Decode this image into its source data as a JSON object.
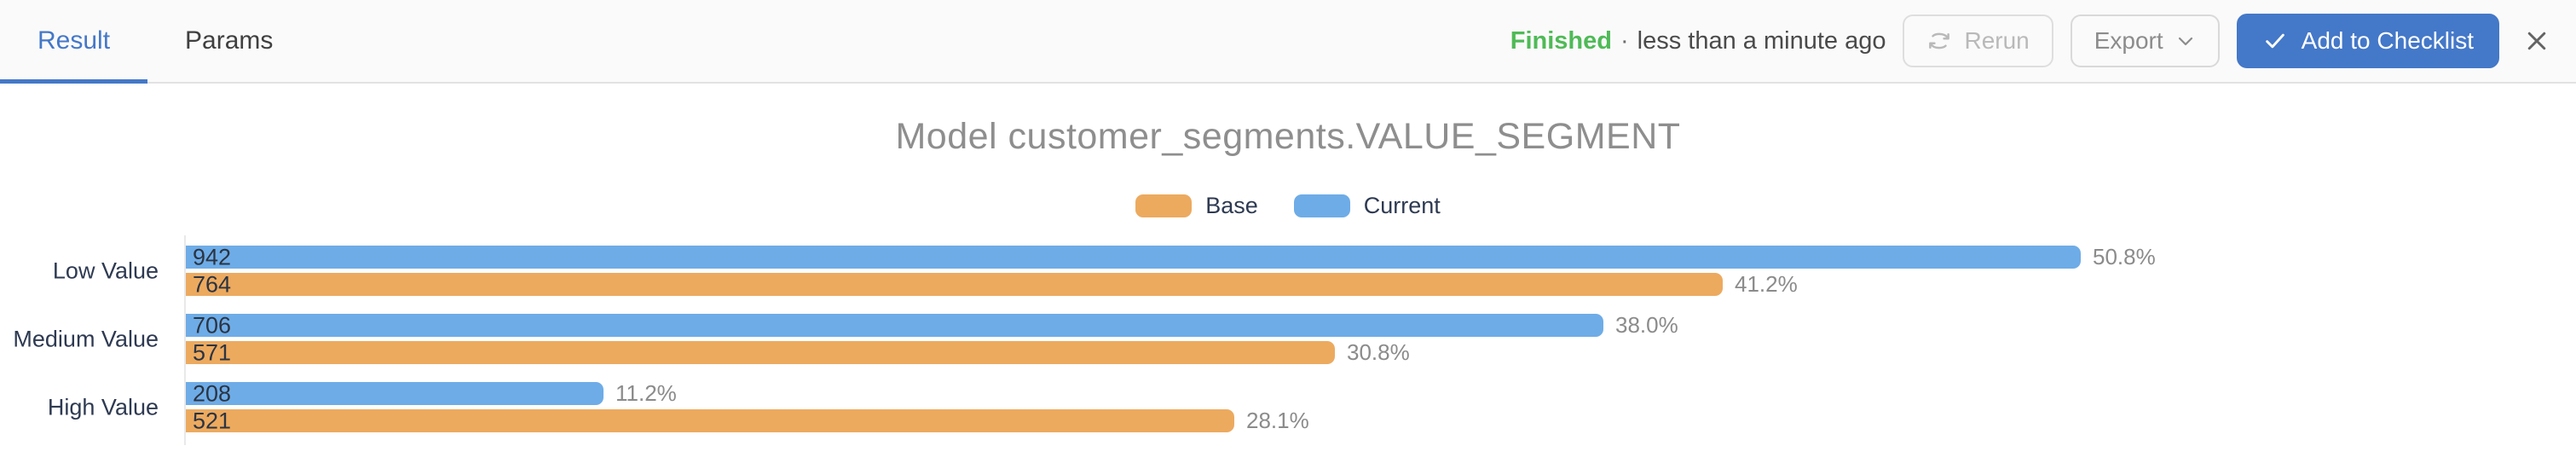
{
  "header": {
    "tabs": [
      {
        "label": "Result",
        "active": true
      },
      {
        "label": "Params",
        "active": false
      }
    ],
    "status": {
      "state": "Finished",
      "separator": "·",
      "time": "less than a minute ago"
    },
    "rerun_label": "Rerun",
    "export_label": "Export",
    "add_to_checklist_label": "Add to Checklist",
    "icons": {
      "rerun": "sync-icon",
      "export_caret": "chevron-down-icon",
      "add_to_checklist": "check-icon",
      "close": "close-icon"
    }
  },
  "colors": {
    "primary_blue": "#4478C8",
    "finished_green": "#4FBA57",
    "bar_current": "#6EACE7",
    "bar_base": "#ECAA5F"
  },
  "chart_data": {
    "type": "bar",
    "orientation": "horizontal",
    "title": "Model customer_segments.VALUE_SEGMENT",
    "categories": [
      "Low Value",
      "Medium Value",
      "High Value"
    ],
    "series": [
      {
        "name": "Current",
        "color": "#6EACE7",
        "counts": [
          942,
          706,
          208
        ],
        "percents": [
          50.8,
          38.0,
          11.2
        ]
      },
      {
        "name": "Base",
        "color": "#ECAA5F",
        "counts": [
          764,
          571,
          521
        ],
        "percents": [
          41.2,
          30.8,
          28.1
        ]
      }
    ],
    "bar_order": [
      "Current",
      "Base"
    ],
    "legend_order": [
      "Base",
      "Current"
    ],
    "legend_position": "top",
    "value_label_format": "count inside bar, percent outside bar",
    "xlim": [
      0,
      50.8
    ],
    "grid": false
  }
}
